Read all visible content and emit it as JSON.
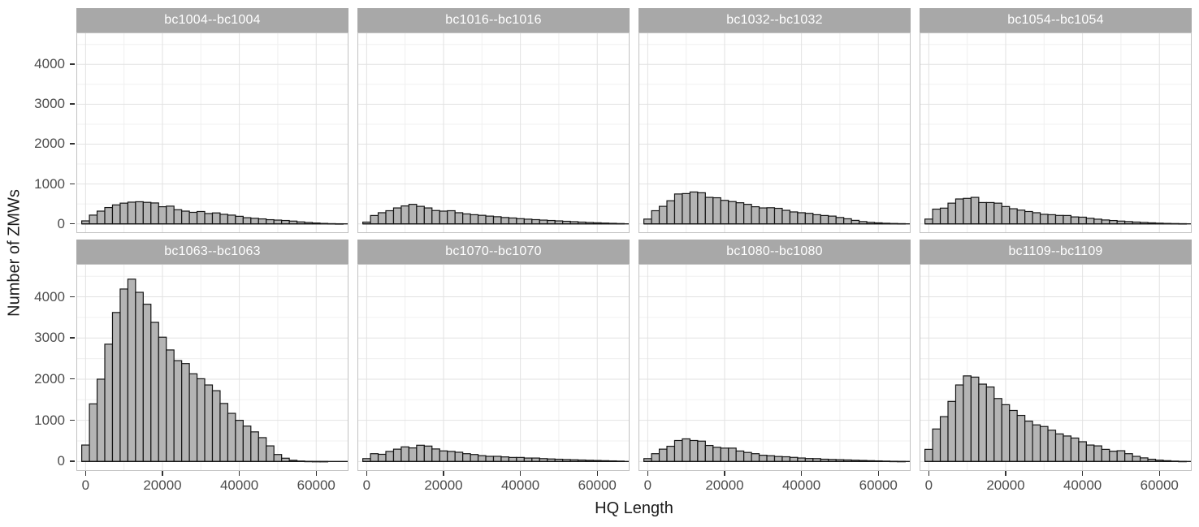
{
  "style": {
    "background": "#ffffff",
    "bar_fill": "#b4b4b4",
    "bar_stroke": "#151515",
    "strip_bg": "#a8a8a8",
    "strip_text": "#ffffff",
    "grid_major": "#e2e2e2",
    "grid_minor": "#f0f0f0",
    "panel_border": "#c2c2c2",
    "axis_text": "#4d4d4d",
    "axis_title": "#1a1a1a",
    "tick_color": "#333333"
  },
  "chart_data": {
    "type": "bar",
    "subtype": "faceted-histogram",
    "title": "",
    "xlabel": "HQ Length",
    "ylabel": "Number of ZMWs",
    "bin_width": 2000,
    "bin_start": -1000,
    "xlim": [
      -2400,
      68400
    ],
    "ylim": [
      -230,
      4800
    ],
    "x_ticks": [
      0,
      20000,
      40000,
      60000
    ],
    "x_tick_labels": [
      "0",
      "20000",
      "40000",
      "60000"
    ],
    "x_minor_ticks": [
      10000,
      30000,
      50000
    ],
    "y_ticks": [
      0,
      1000,
      2000,
      3000,
      4000
    ],
    "y_tick_labels": [
      "0",
      "1000",
      "2000",
      "3000",
      "4000"
    ],
    "y_minor_ticks": [
      500,
      1500,
      2500,
      3500,
      4500
    ],
    "grid": true,
    "legend": "none",
    "facet_rows": 2,
    "facet_cols": 4,
    "facets": [
      {
        "name": "bc1004--bc1004",
        "counts": [
          75,
          220,
          320,
          410,
          475,
          520,
          545,
          555,
          540,
          525,
          430,
          445,
          355,
          320,
          290,
          310,
          260,
          275,
          240,
          220,
          190,
          155,
          140,
          125,
          105,
          95,
          85,
          70,
          50,
          35,
          22,
          12,
          6,
          3
        ]
      },
      {
        "name": "bc1016--bc1016",
        "counts": [
          45,
          210,
          280,
          330,
          400,
          450,
          490,
          440,
          400,
          335,
          320,
          330,
          280,
          250,
          230,
          215,
          195,
          180,
          160,
          148,
          130,
          118,
          106,
          95,
          85,
          75,
          65,
          55,
          45,
          35,
          28,
          20,
          14,
          8
        ]
      },
      {
        "name": "bc1032--bc1032",
        "counts": [
          120,
          330,
          440,
          580,
          750,
          760,
          800,
          780,
          665,
          655,
          590,
          560,
          530,
          490,
          430,
          400,
          405,
          390,
          340,
          300,
          280,
          265,
          230,
          210,
          195,
          160,
          128,
          88,
          58,
          38,
          26,
          16,
          10,
          6
        ]
      },
      {
        "name": "bc1054--bc1054",
        "counts": [
          120,
          370,
          395,
          520,
          625,
          640,
          665,
          535,
          535,
          520,
          435,
          380,
          345,
          310,
          280,
          240,
          230,
          212,
          210,
          175,
          168,
          140,
          118,
          98,
          84,
          70,
          58,
          46,
          36,
          26,
          18,
          12,
          8,
          5
        ]
      },
      {
        "name": "bc1063--bc1063",
        "counts": [
          400,
          1400,
          2000,
          2850,
          3620,
          4190,
          4430,
          4110,
          3820,
          3380,
          3020,
          2710,
          2450,
          2380,
          2130,
          2010,
          1860,
          1720,
          1410,
          1170,
          1000,
          860,
          720,
          580,
          380,
          170,
          80,
          30,
          12,
          5,
          2,
          1,
          0,
          0
        ]
      },
      {
        "name": "bc1070--bc1070",
        "counts": [
          70,
          190,
          175,
          245,
          300,
          355,
          330,
          395,
          375,
          305,
          258,
          245,
          225,
          190,
          170,
          142,
          126,
          126,
          112,
          98,
          98,
          84,
          84,
          70,
          62,
          55,
          48,
          42,
          36,
          30,
          25,
          20,
          15,
          10
        ]
      },
      {
        "name": "bc1080--bc1080",
        "counts": [
          70,
          190,
          300,
          370,
          510,
          550,
          510,
          495,
          390,
          345,
          325,
          325,
          255,
          220,
          190,
          152,
          140,
          122,
          115,
          100,
          85,
          72,
          70,
          56,
          50,
          44,
          38,
          32,
          26,
          20,
          15,
          10,
          6,
          3
        ]
      },
      {
        "name": "bc1109--bc1109",
        "counts": [
          295,
          790,
          1090,
          1460,
          1860,
          2080,
          2050,
          1880,
          1810,
          1530,
          1380,
          1240,
          1120,
          980,
          890,
          850,
          760,
          670,
          620,
          570,
          480,
          400,
          380,
          295,
          250,
          262,
          190,
          125,
          88,
          55,
          34,
          20,
          10,
          4
        ]
      }
    ]
  }
}
